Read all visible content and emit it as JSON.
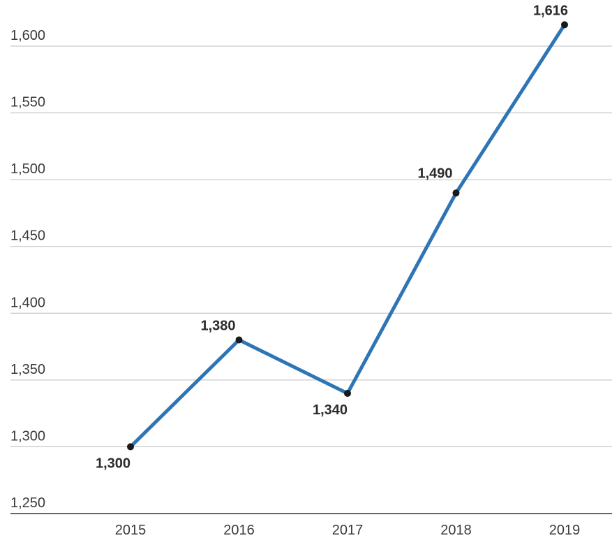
{
  "chart_data": {
    "type": "line",
    "title": "",
    "xlabel": "",
    "ylabel": "",
    "x": [
      "2015",
      "2016",
      "2017",
      "2018",
      "2019"
    ],
    "series": [
      {
        "values": [
          1300,
          1380,
          1340,
          1490,
          1616
        ]
      }
    ],
    "data_labels": [
      "1,300",
      "1,380",
      "1,340",
      "1,490",
      "1,616"
    ],
    "yticks": [
      1250,
      1300,
      1350,
      1400,
      1450,
      1500,
      1550,
      1600
    ],
    "ytick_labels": [
      "1,250",
      "1,300",
      "1,350",
      "1,400",
      "1,450",
      "1,500",
      "1,550",
      "1,600"
    ],
    "ylim": [
      1250,
      1600
    ],
    "grid": true,
    "legend": "none",
    "colors": {
      "line": "#2e75b6",
      "marker": "#1a1a1a",
      "grid": "#bdbdbd"
    }
  }
}
